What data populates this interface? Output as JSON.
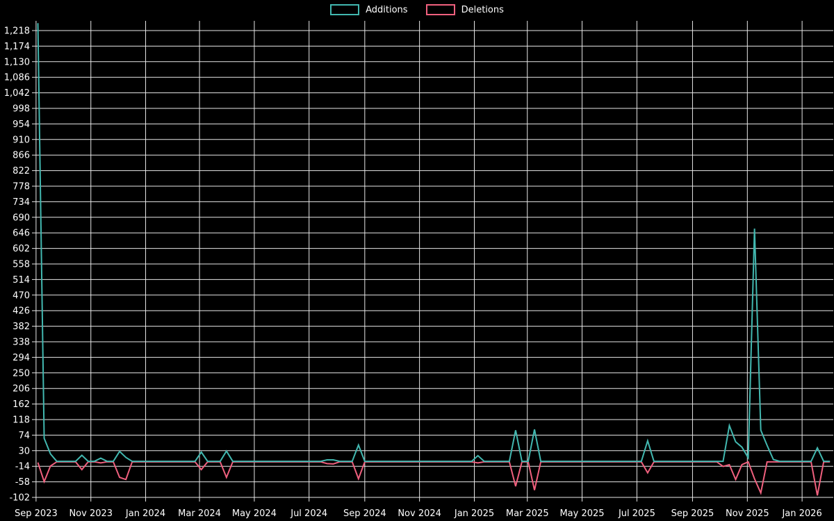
{
  "page": {
    "background_color": "#000000",
    "grid_color": "#e8e8e8",
    "text_color": "#ffffff"
  },
  "legend": {
    "position": "top-center",
    "items": [
      {
        "label": "Additions",
        "color": "#42b8b0"
      },
      {
        "label": "Deletions",
        "color": "#f0607e"
      }
    ]
  },
  "chart_data": {
    "type": "line",
    "title": "",
    "xlabel": "",
    "ylabel": "",
    "grid": true,
    "x_unit": "weeks starting Sep 2023",
    "x_axis": {
      "weeks_total": 127,
      "tick_labels": [
        "Sep 2023",
        "Nov 2023",
        "Jan 2024",
        "Mar 2024",
        "May 2024",
        "Jul 2024",
        "Sep 2024",
        "Nov 2024",
        "Jan 2025",
        "Mar 2025",
        "May 2025",
        "Jul 2025",
        "Sep 2025",
        "Nov 2025",
        "Jan 2026"
      ],
      "tick_week_positions": [
        -0.29,
        8.43,
        17.14,
        25.71,
        34.43,
        43.14,
        52.0,
        60.71,
        69.43,
        77.86,
        86.57,
        95.29,
        104.14,
        112.86,
        121.57
      ]
    },
    "y_axis": {
      "min": -102,
      "max": 1218,
      "step": 44,
      "tick_labels_top_to_bottom": [
        "1,218",
        "1,174",
        "1,130",
        "1,086",
        "1,042",
        "998",
        "954",
        "910",
        "866",
        "822",
        "778",
        "734",
        "690",
        "646",
        "602",
        "558",
        "514",
        "470",
        "426",
        "382",
        "338",
        "294",
        "250",
        "206",
        "162",
        "118",
        "74",
        "30",
        "-14",
        "-58",
        "-102"
      ]
    },
    "series": [
      {
        "name": "Additions",
        "color": "#42b8b0",
        "default_value": 0,
        "points_by_week": {
          "0": 1239,
          "1": 65,
          "2": 21,
          "7": 17,
          "10": 9,
          "13": 28,
          "14": 11,
          "26": 26,
          "30": 29,
          "46": 4,
          "47": 4,
          "51": 46,
          "70": 16,
          "76": 88,
          "79": 90,
          "97": 58,
          "110": 101,
          "111": 55,
          "112": 40,
          "113": 10,
          "114": 658,
          "115": 88,
          "116": 45,
          "117": 5,
          "124": 38
        }
      },
      {
        "name": "Deletions",
        "color": "#f0607e",
        "default_value": 0,
        "points_by_week": {
          "0": -2,
          "1": -56,
          "2": -12,
          "7": -22,
          "10": -3,
          "13": -44,
          "14": -50,
          "26": -22,
          "30": -44,
          "46": -5,
          "47": -6,
          "51": -48,
          "70": -3,
          "76": -69,
          "79": -80,
          "97": -31,
          "109": -13,
          "110": -8,
          "111": -50,
          "112": -8,
          "114": -48,
          "115": -88,
          "124": -95
        }
      }
    ]
  }
}
